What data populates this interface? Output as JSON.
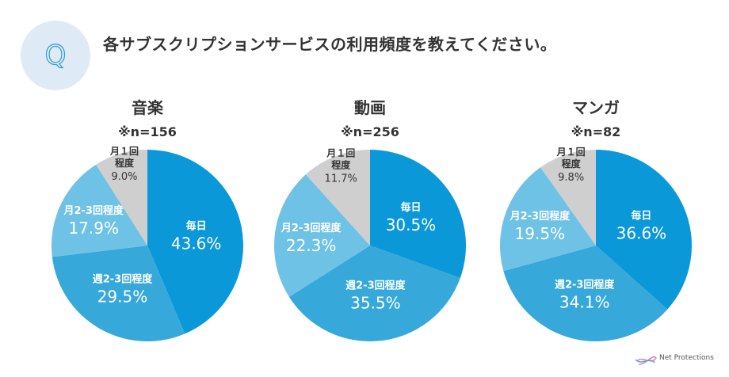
{
  "header": {
    "icon_letter": "Q",
    "question": "各サブスクリプションサービスの利用頻度を教えてください。"
  },
  "logo": {
    "text": "Net Protections"
  },
  "colors": {
    "毎日": "#0a98d8",
    "週2-3回程度": "#36a8da",
    "月2-3回程度": "#6ec2e6",
    "月１回程度": "#cfcfcf"
  },
  "chart_data": [
    {
      "type": "pie",
      "title": "音楽",
      "subtitle": "※n=156",
      "categories": [
        "毎日",
        "週2-3回程度",
        "月2-3回程度",
        "月１回程度"
      ],
      "values": [
        43.6,
        29.5,
        17.9,
        9.0
      ],
      "labels": [
        "43.6%",
        "29.5%",
        "17.9%",
        "9.0%"
      ]
    },
    {
      "type": "pie",
      "title": "動画",
      "subtitle": "※n=256",
      "categories": [
        "毎日",
        "週2-3回程度",
        "月2-3回程度",
        "月１回程度"
      ],
      "values": [
        30.5,
        35.5,
        22.3,
        11.7
      ],
      "labels": [
        "30.5%",
        "35.5%",
        "22.3%",
        "11.7%"
      ]
    },
    {
      "type": "pie",
      "title": "マンガ",
      "subtitle": "※n=82",
      "categories": [
        "毎日",
        "週2-3回程度",
        "月2-3回程度",
        "月１回程度"
      ],
      "values": [
        36.6,
        34.1,
        19.5,
        9.8
      ],
      "labels": [
        "36.6%",
        "34.1%",
        "19.5%",
        "9.8%"
      ]
    }
  ]
}
